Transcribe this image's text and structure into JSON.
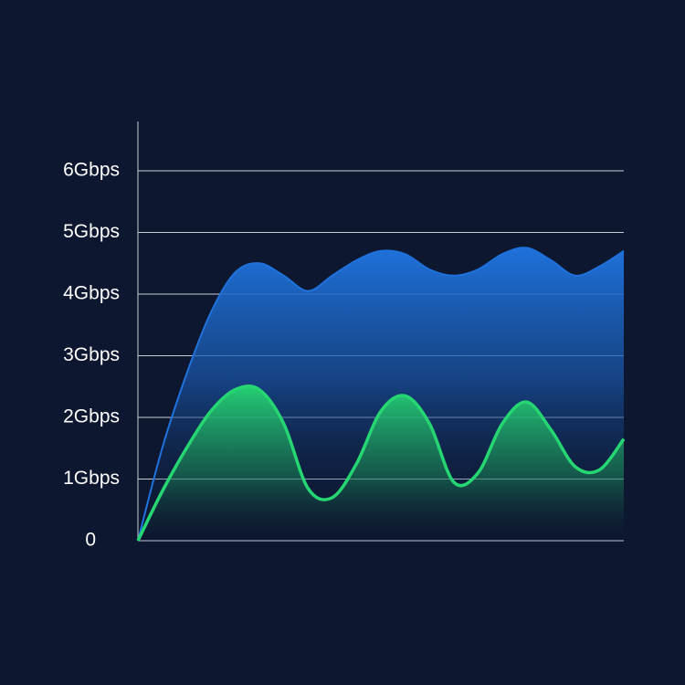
{
  "chart_data": {
    "type": "area",
    "categories": [
      null,
      null,
      null,
      null,
      null,
      null,
      null,
      null,
      null,
      null,
      null,
      null,
      null,
      null,
      null,
      null,
      null,
      null,
      null,
      null,
      null
    ],
    "series": [
      {
        "color": "#1f72dc",
        "values": [
          0,
          1.5,
          2.7,
          3.7,
          4.35,
          4.5,
          4.3,
          4.05,
          4.3,
          4.55,
          4.7,
          4.65,
          4.4,
          4.3,
          4.4,
          4.65,
          4.75,
          4.55,
          4.3,
          4.45,
          4.7
        ]
      },
      {
        "color": "#25d672",
        "values": [
          0,
          0.8,
          1.5,
          2.1,
          2.45,
          2.45,
          1.9,
          0.85,
          0.7,
          1.25,
          2.1,
          2.35,
          1.9,
          0.95,
          1.1,
          1.9,
          2.25,
          1.8,
          1.2,
          1.15,
          1.65
        ]
      }
    ],
    "ylim": [
      0,
      6.8
    ],
    "yticks": [
      0,
      {
        "value": 1,
        "label": "1Gbps"
      },
      {
        "value": 2,
        "label": "2Gbps"
      },
      {
        "value": 3,
        "label": "3Gbps"
      },
      {
        "value": 4,
        "label": "4Gbps"
      },
      {
        "value": 5,
        "label": "5Gbps"
      },
      {
        "value": 6,
        "label": "6Gbps"
      }
    ],
    "grid": true
  }
}
